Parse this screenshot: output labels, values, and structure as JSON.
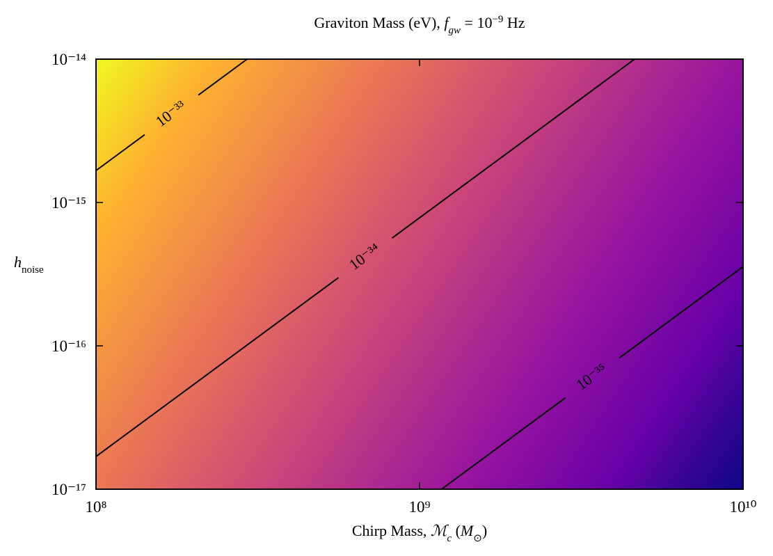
{
  "chart_data": {
    "type": "contour",
    "title": [
      {
        "text": "Graviton Mass (eV), "
      },
      {
        "text": "f",
        "style": "italic"
      },
      {
        "text": "gw",
        "style": "italic",
        "shift": "sub"
      },
      {
        "text": " = 10"
      },
      {
        "text": "−9",
        "shift": "super"
      },
      {
        "text": " Hz"
      }
    ],
    "x_label": [
      {
        "text": "Chirp Mass, "
      },
      {
        "text": "ℳ",
        "style": "italic"
      },
      {
        "text": "c",
        "style": "italic",
        "shift": "sub"
      },
      {
        "text": " ("
      },
      {
        "text": "M",
        "style": "italic"
      },
      {
        "text": "⊙",
        "shift": "sub"
      },
      {
        "text": ")"
      }
    ],
    "y_label": [
      {
        "text": "h",
        "style": "italic"
      },
      {
        "text": "noise",
        "shift": "sub"
      }
    ],
    "xscale": "log",
    "yscale": "log",
    "xlim": [
      100000000,
      10000000000
    ],
    "ylim": [
      1e-17,
      1e-14
    ],
    "xticks": [
      {
        "value": 100000000,
        "label": "10⁸"
      },
      {
        "value": 1000000000,
        "label": "10⁹"
      },
      {
        "value": 10000000000,
        "label": "10¹⁰"
      }
    ],
    "yticks": [
      {
        "value": 1e-17,
        "label": "10⁻¹⁷"
      },
      {
        "value": 1e-16,
        "label": "10⁻¹⁶"
      },
      {
        "value": 1e-15,
        "label": "10⁻¹⁵"
      },
      {
        "value": 1e-14,
        "label": "10⁻¹⁴"
      }
    ],
    "line_color": "#000000",
    "contours": [
      {
        "level": 1e-33,
        "label": "10⁻³³",
        "x": [
          100000000,
          293000000
        ],
        "y": [
          1.67e-15,
          1e-14
        ]
      },
      {
        "level": 1e-34,
        "label": "10⁻³⁴",
        "x": [
          100000000,
          4620000000
        ],
        "y": [
          1.69e-17,
          1e-14
        ]
      },
      {
        "level": 1e-35,
        "label": "10⁻³⁵",
        "x": [
          1170000000,
          10000000000
        ],
        "y": [
          1e-17,
          3.57e-16
        ]
      }
    ]
  }
}
